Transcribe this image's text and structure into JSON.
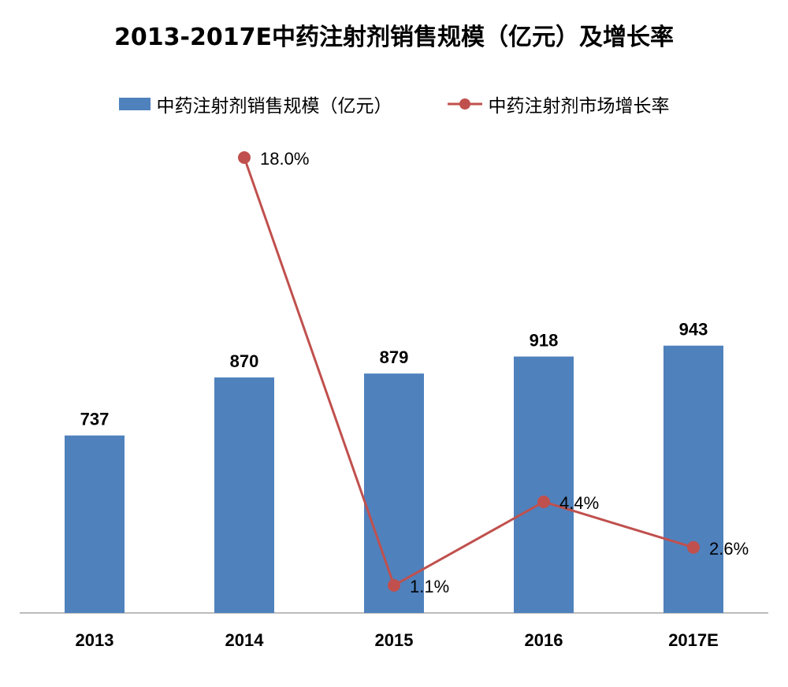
{
  "chart_data": {
    "type": "bar",
    "title": "2013-2017E中药注射剂销售规模（亿元）及增长率",
    "categories": [
      "2013",
      "2014",
      "2015",
      "2016",
      "2017E"
    ],
    "series": [
      {
        "name": "中药注射剂销售规模（亿元）",
        "type": "bar",
        "values": [
          737,
          870,
          879,
          918,
          943
        ],
        "labels": [
          "737",
          "870",
          "879",
          "918",
          "943"
        ],
        "color": "#4F81BD"
      },
      {
        "name": "中药注射剂市场增长率",
        "type": "line",
        "values": [
          null,
          18.0,
          1.1,
          4.4,
          2.6
        ],
        "labels": [
          "",
          "18.0%",
          "1.1%",
          "4.4%",
          "2.6%"
        ],
        "color": "#C0504D"
      }
    ],
    "legend_position": "top",
    "grid": false
  }
}
